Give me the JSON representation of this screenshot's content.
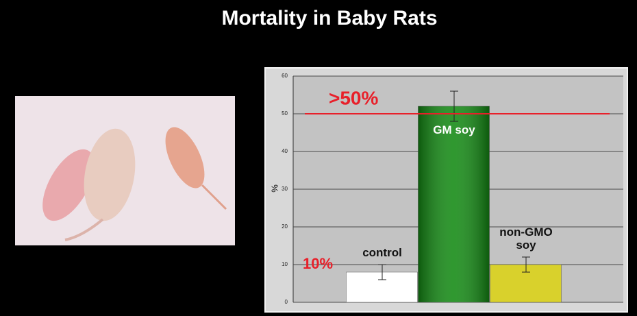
{
  "chart_data": {
    "type": "bar",
    "title": "Mortality in Baby Rats",
    "y_label": "%",
    "categories": [
      "control",
      "GM soy",
      "non-GMO soy"
    ],
    "values": [
      8,
      52,
      10
    ],
    "errors": [
      2,
      4,
      2
    ],
    "colors": [
      "#ffffff",
      "#138a13",
      "#d9d12c"
    ],
    "category_label_colors": [
      "#111111",
      "#ffffff",
      "#111111"
    ],
    "ylim": [
      0,
      60
    ],
    "yticks": [
      0,
      10,
      20,
      30,
      40,
      50,
      60
    ],
    "grid": true,
    "reference_lines": [
      {
        "value": 50,
        "label": ">50%",
        "color": "#e8202a"
      }
    ],
    "annotations": [
      {
        "text": "10%",
        "value": 10,
        "color": "#e8202a"
      }
    ]
  }
}
